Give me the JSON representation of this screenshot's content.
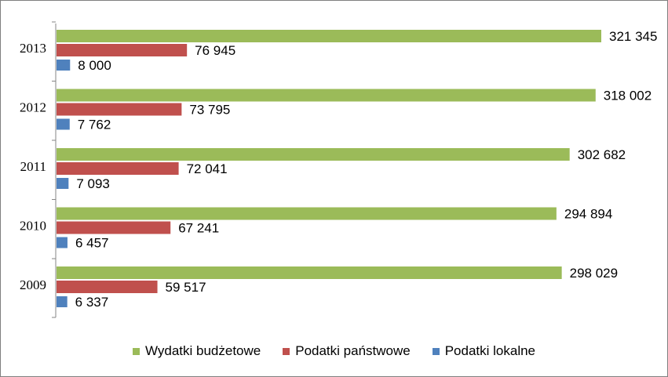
{
  "chart_data": {
    "type": "bar",
    "orientation": "horizontal",
    "categories": [
      "2013",
      "2012",
      "2011",
      "2010",
      "2009"
    ],
    "series": [
      {
        "name": "Wydatki budżetowe",
        "color": "#9BBB59",
        "values": [
          321345,
          318002,
          302682,
          294894,
          298029
        ],
        "labels": [
          "321 345",
          "318 002",
          "302 682",
          "294 894",
          "298 029"
        ]
      },
      {
        "name": "Podatki państwowe",
        "color": "#C0504D",
        "values": [
          76945,
          73795,
          72041,
          67241,
          59517
        ],
        "labels": [
          "76 945",
          "73 795",
          "72 041",
          "67 241",
          "59 517"
        ]
      },
      {
        "name": "Podatki lokalne",
        "color": "#4F81BD",
        "values": [
          8000,
          7762,
          7093,
          6457,
          6337
        ],
        "labels": [
          "8 000",
          "7 762",
          "7 093",
          "6 457",
          "6 337"
        ]
      }
    ],
    "xlim": [
      0,
      330000
    ],
    "grid": false,
    "legend_position": "bottom"
  }
}
